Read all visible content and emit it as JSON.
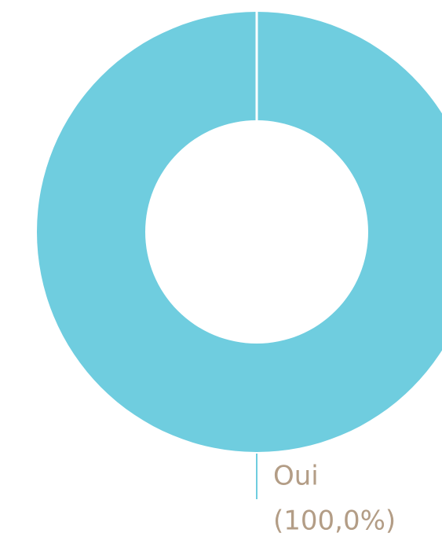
{
  "chart_data": {
    "type": "donut",
    "categories": [
      "Oui"
    ],
    "values": [
      100
    ],
    "value_labels": [
      "(100,0%)"
    ],
    "colors": [
      "#6fcddf"
    ]
  }
}
